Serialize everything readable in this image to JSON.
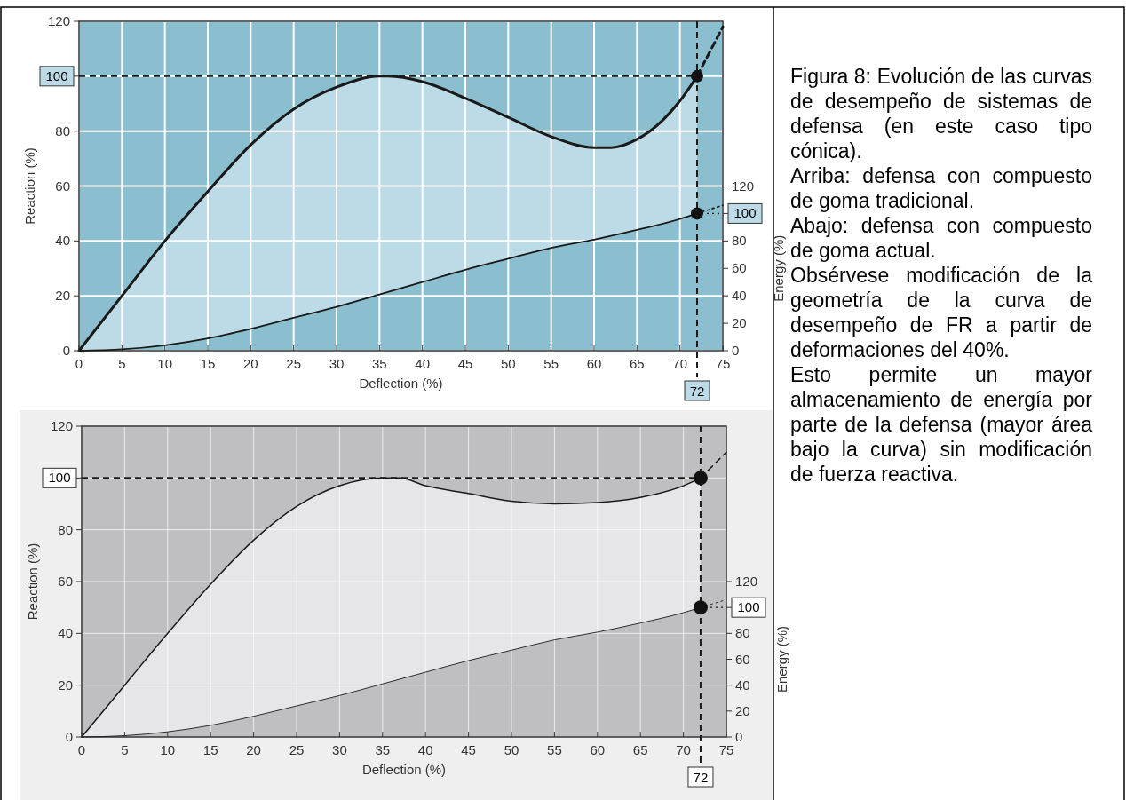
{
  "chart_data": [
    {
      "type": "line",
      "xlabel": "Deflection (%)",
      "ylabel": "Reaction (%)",
      "y2label": "Energy (%)",
      "xlim": [
        0,
        75
      ],
      "xticks": [
        0,
        5,
        10,
        15,
        20,
        25,
        30,
        35,
        40,
        45,
        50,
        55,
        60,
        65,
        70,
        75
      ],
      "ylim": [
        0,
        120
      ],
      "yticks": [
        0,
        20,
        40,
        60,
        80,
        {
          "value": 100,
          "label": null
        },
        120
      ],
      "y2lim": [
        0,
        240
      ],
      "y2ticks": [
        0,
        20,
        40,
        60,
        80,
        {
          "value": 100,
          "label": null
        },
        120
      ],
      "grid": true,
      "series": [
        {
          "type": "area",
          "color": "#bcdbe7",
          "x": [
            0,
            5,
            10,
            15,
            20,
            25,
            30,
            35,
            36,
            40,
            45,
            50,
            55,
            60,
            62,
            65,
            68,
            70,
            72
          ],
          "values": [
            0,
            20,
            40,
            58,
            75,
            88,
            96,
            100,
            100,
            98,
            92,
            85,
            78,
            74,
            74,
            77,
            84,
            91,
            100
          ]
        },
        {
          "type": "area",
          "axis": "y2",
          "color": "#8bbfcf",
          "x": [
            0,
            5,
            10,
            15,
            20,
            25,
            30,
            35,
            40,
            45,
            50,
            55,
            60,
            65,
            70,
            72
          ],
          "values": [
            0,
            1,
            4,
            9,
            16,
            24,
            32,
            41,
            50,
            59,
            67,
            75,
            81,
            88,
            96,
            100
          ]
        },
        {
          "type": "line",
          "color": "#1a1a1a",
          "line_style": "dashed",
          "x": [
            72,
            75
          ],
          "values": [
            100,
            118
          ]
        },
        {
          "type": "line",
          "axis": "y2",
          "color": "#1a1a1a",
          "line_style": "dotted",
          "x": [
            72,
            75
          ],
          "values": [
            100,
            106
          ]
        },
        {
          "type": "scatter",
          "marker": "circle",
          "color": "#111111",
          "x": [
            72
          ],
          "values": [
            100
          ]
        },
        {
          "type": "scatter",
          "axis": "y2",
          "marker": "circle",
          "color": "#111111",
          "x": [
            72
          ],
          "values": [
            100
          ]
        }
      ],
      "ref_lines": [
        {
          "axis": "y",
          "value": 100,
          "label": "100",
          "line_style": "dashed"
        },
        {
          "axis": "x",
          "value": 72,
          "label": "72",
          "line_style": "dashed"
        },
        {
          "axis": "y2",
          "value": 100,
          "label": "100",
          "line_style": "dotted"
        }
      ]
    },
    {
      "type": "line",
      "xlabel": "Deflection (%)",
      "ylabel": "Reaction (%)",
      "y2label": "Energy (%)",
      "xlim": [
        0,
        75
      ],
      "xticks": [
        0,
        5,
        10,
        15,
        20,
        25,
        30,
        35,
        40,
        45,
        50,
        55,
        60,
        65,
        70,
        75
      ],
      "ylim": [
        0,
        120
      ],
      "yticks": [
        0,
        20,
        40,
        60,
        80,
        {
          "value": 100,
          "label": null
        },
        120
      ],
      "y2lim": [
        0,
        240
      ],
      "y2ticks": [
        0,
        20,
        40,
        60,
        80,
        {
          "value": 100,
          "label": null
        },
        120
      ],
      "grid": true,
      "series": [
        {
          "type": "area",
          "color": "#e6e6e8",
          "x": [
            0,
            5,
            10,
            15,
            20,
            25,
            30,
            35,
            37,
            40,
            45,
            50,
            55,
            60,
            65,
            70,
            72
          ],
          "values": [
            0,
            20,
            40,
            59,
            76,
            89,
            97,
            100,
            100,
            97,
            94,
            91,
            90,
            90.5,
            92.5,
            97,
            100
          ]
        },
        {
          "type": "area",
          "axis": "y2",
          "color": "#bfbfc1",
          "x": [
            0,
            5,
            10,
            15,
            20,
            25,
            30,
            35,
            40,
            45,
            50,
            55,
            60,
            65,
            70,
            72
          ],
          "values": [
            0,
            1,
            4,
            9,
            16,
            24,
            32,
            41,
            50,
            59,
            67,
            75,
            81,
            88,
            96,
            100
          ]
        },
        {
          "type": "line",
          "color": "#1a1a1a",
          "line_style": "dashed",
          "x": [
            72,
            75
          ],
          "values": [
            100,
            110
          ]
        },
        {
          "type": "line",
          "axis": "y2",
          "color": "#1a1a1a",
          "line_style": "dotted",
          "x": [
            72,
            75
          ],
          "values": [
            100,
            106
          ]
        },
        {
          "type": "scatter",
          "marker": "circle",
          "color": "#111111",
          "x": [
            72
          ],
          "values": [
            100
          ]
        },
        {
          "type": "scatter",
          "axis": "y2",
          "marker": "circle",
          "color": "#111111",
          "x": [
            72
          ],
          "values": [
            100
          ]
        }
      ],
      "ref_lines": [
        {
          "axis": "y",
          "value": 100,
          "label": "100",
          "line_style": "dashed"
        },
        {
          "axis": "x",
          "value": 72,
          "label": "72",
          "line_style": "dashed"
        },
        {
          "axis": "y2",
          "value": 100,
          "label": "100",
          "line_style": "dotted"
        }
      ]
    },
    {
      "type": "other",
      "annotations": [
        "Figura 8: Evolución de las curvas de desempeño de sistemas de defensa (en este caso tipo cónica).",
        "Arriba: defensa con compuesto de goma tradicional.",
        "Abajo: defensa con compuesto de goma actual.",
        "Obsérvese modificación de la geometría de la curva de desempeño de FR a partir de deformaciones del 40%.",
        "Esto permite un mayor almacenamiento de energía por parte de la defensa (mayor área bajo la curva) sin modificación de fuerza reactiva."
      ]
    }
  ]
}
